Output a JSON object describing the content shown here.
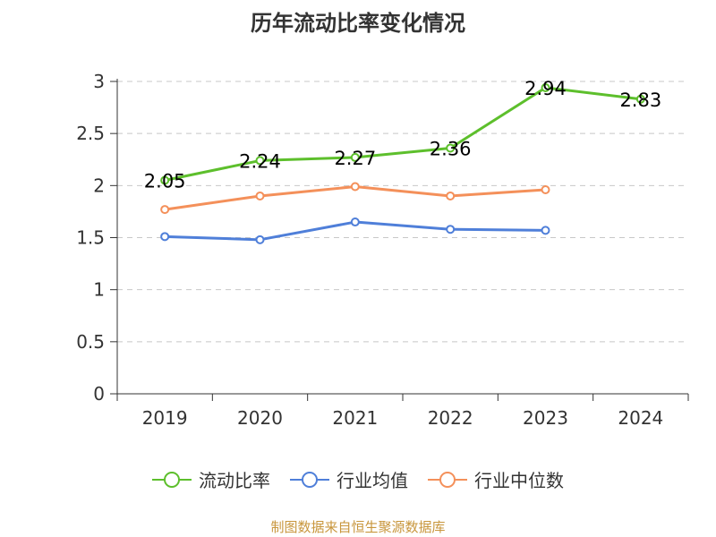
{
  "title": "历年流动比率变化情况",
  "source": "制图数据来自恒生聚源数据库",
  "chart_data": {
    "type": "line",
    "title": "历年流动比率变化情况",
    "categories": [
      "2019",
      "2020",
      "2021",
      "2022",
      "2023",
      "2024"
    ],
    "y_ticks": [
      "0",
      "0.5",
      "1",
      "1.5",
      "2",
      "2.5",
      "3"
    ],
    "ylim": [
      0,
      3
    ],
    "grid": true,
    "legend_position": "bottom",
    "series": [
      {
        "name": "流动比率",
        "color": "#5dbf2c",
        "values": [
          2.05,
          2.24,
          2.27,
          2.36,
          2.94,
          2.83
        ],
        "labels": [
          "2.05",
          "2.24",
          "2.27",
          "2.36",
          "2.94",
          "2.83"
        ]
      },
      {
        "name": "行业均值",
        "color": "#4f7fd9",
        "values": [
          1.51,
          1.48,
          1.65,
          1.58,
          1.57,
          null
        ]
      },
      {
        "name": "行业中位数",
        "color": "#f4905a",
        "values": [
          1.77,
          1.9,
          1.99,
          1.9,
          1.96,
          null
        ]
      }
    ]
  }
}
